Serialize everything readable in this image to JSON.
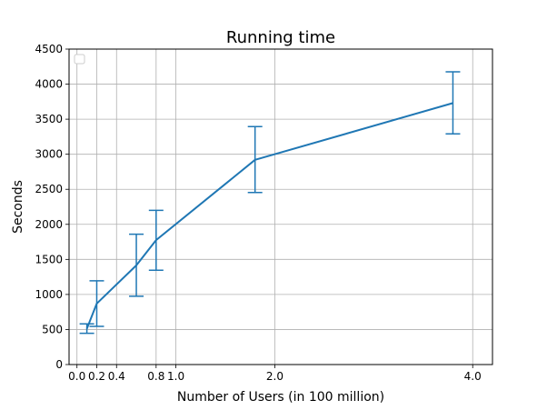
{
  "chart_data": {
    "type": "line",
    "title": "Running time",
    "xlabel": "Number of Users (in 100 million)",
    "ylabel": "Seconds",
    "xlim": [
      -0.08,
      4.2
    ],
    "ylim": [
      0,
      4500
    ],
    "x_ticks": [
      0.0,
      0.2,
      0.4,
      0.8,
      1.0,
      2.0,
      4.0
    ],
    "x_tick_labels": [
      "0.0",
      "0.2",
      "0.4",
      "0.8",
      "1.0",
      "2.0",
      "4.0"
    ],
    "y_ticks": [
      0,
      500,
      1000,
      1500,
      2000,
      2500,
      3000,
      3500,
      4000,
      4500
    ],
    "y_tick_labels": [
      "0",
      "500",
      "1000",
      "1500",
      "2000",
      "2500",
      "3000",
      "3500",
      "4000",
      "4500"
    ],
    "grid": true,
    "legend": "top-left (empty)",
    "series": [
      {
        "color": "#1f77b4",
        "x": [
          0.1,
          0.2,
          0.6,
          0.8,
          1.8,
          3.8
        ],
        "y": [
          510,
          870,
          1415,
          1775,
          2920,
          3730
        ],
        "err_low": [
          445,
          545,
          975,
          1345,
          2455,
          3290
        ],
        "err_high": [
          580,
          1195,
          1860,
          2200,
          3395,
          4175
        ]
      }
    ]
  }
}
